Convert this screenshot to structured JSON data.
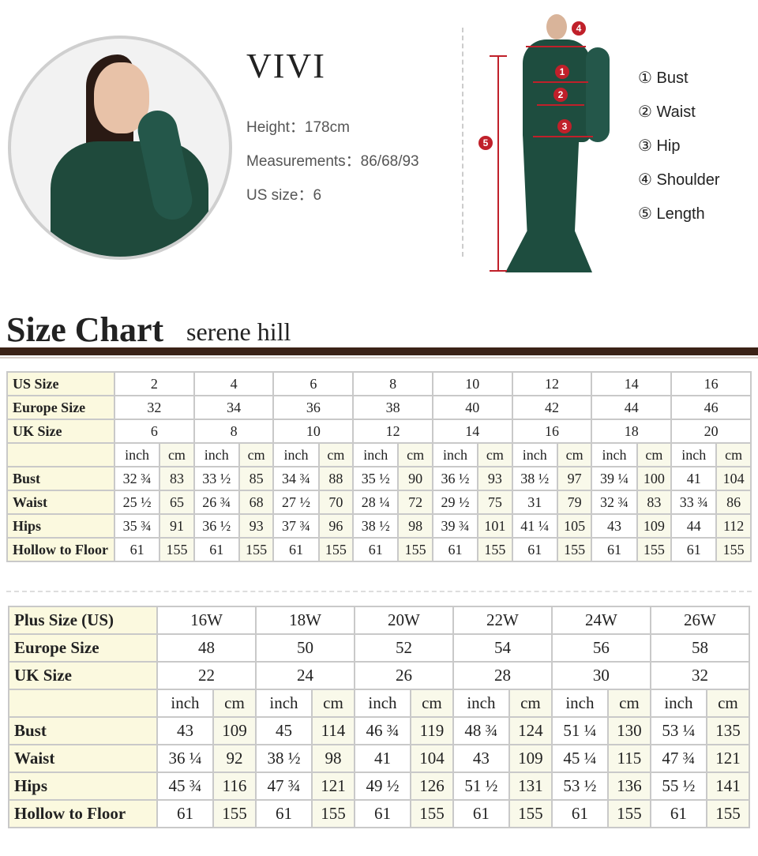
{
  "model": {
    "name": "VIVI",
    "height": "Height：178cm",
    "measurements": "Measurements：86/68/93",
    "us_size": "US size：6"
  },
  "diagram": {
    "badges": [
      "1",
      "2",
      "3",
      "4",
      "5"
    ],
    "legend": [
      "① Bust",
      "② Waist",
      "③ Hip",
      "④ Shoulder",
      "⑤ Length"
    ],
    "accent_color": "#c0202a"
  },
  "size_chart": {
    "title": "Size Chart",
    "subtitle": "serene hill"
  },
  "standard_table": {
    "size_rows": [
      {
        "label": "US Size",
        "values": [
          "2",
          "4",
          "6",
          "8",
          "10",
          "12",
          "14",
          "16"
        ]
      },
      {
        "label": "Europe Size",
        "values": [
          "32",
          "34",
          "36",
          "38",
          "40",
          "42",
          "44",
          "46"
        ]
      },
      {
        "label": "UK Size",
        "values": [
          "6",
          "8",
          "10",
          "12",
          "14",
          "16",
          "18",
          "20"
        ]
      }
    ],
    "unit_row": [
      "inch",
      "cm"
    ],
    "measure_rows": [
      {
        "label": "Bust",
        "values": [
          "32 ¾",
          "83",
          "33 ½",
          "85",
          "34 ¾",
          "88",
          "35 ½",
          "90",
          "36 ½",
          "93",
          "38 ½",
          "97",
          "39 ¼",
          "100",
          "41",
          "104"
        ]
      },
      {
        "label": "Waist",
        "values": [
          "25 ½",
          "65",
          "26 ¾",
          "68",
          "27 ½",
          "70",
          "28 ¼",
          "72",
          "29 ½",
          "75",
          "31",
          "79",
          "32 ¾",
          "83",
          "33 ¾",
          "86"
        ]
      },
      {
        "label": "Hips",
        "values": [
          "35 ¾",
          "91",
          "36 ½",
          "93",
          "37 ¾",
          "96",
          "38 ½",
          "98",
          "39 ¾",
          "101",
          "41 ¼",
          "105",
          "43",
          "109",
          "44",
          "112"
        ]
      },
      {
        "label": "Hollow to Floor",
        "values": [
          "61",
          "155",
          "61",
          "155",
          "61",
          "155",
          "61",
          "155",
          "61",
          "155",
          "61",
          "155",
          "61",
          "155",
          "61",
          "155"
        ]
      }
    ]
  },
  "plus_table": {
    "size_rows": [
      {
        "label": "Plus Size (US)",
        "values": [
          "16W",
          "18W",
          "20W",
          "22W",
          "24W",
          "26W"
        ]
      },
      {
        "label": "Europe Size",
        "values": [
          "48",
          "50",
          "52",
          "54",
          "56",
          "58"
        ]
      },
      {
        "label": "UK Size",
        "values": [
          "22",
          "24",
          "26",
          "28",
          "30",
          "32"
        ]
      }
    ],
    "unit_row": [
      "inch",
      "cm"
    ],
    "measure_rows": [
      {
        "label": "Bust",
        "values": [
          "43",
          "109",
          "45",
          "114",
          "46 ¾",
          "119",
          "48 ¾",
          "124",
          "51 ¼",
          "130",
          "53 ¼",
          "135"
        ]
      },
      {
        "label": "Waist",
        "values": [
          "36 ¼",
          "92",
          "38 ½",
          "98",
          "41",
          "104",
          "43",
          "109",
          "45 ¼",
          "115",
          "47 ¾",
          "121"
        ]
      },
      {
        "label": "Hips",
        "values": [
          "45 ¾",
          "116",
          "47 ¾",
          "121",
          "49 ½",
          "126",
          "51 ½",
          "131",
          "53 ½",
          "136",
          "55 ½",
          "141"
        ]
      },
      {
        "label": "Hollow to Floor",
        "values": [
          "61",
          "155",
          "61",
          "155",
          "61",
          "155",
          "61",
          "155",
          "61",
          "155",
          "61",
          "155"
        ]
      }
    ]
  }
}
